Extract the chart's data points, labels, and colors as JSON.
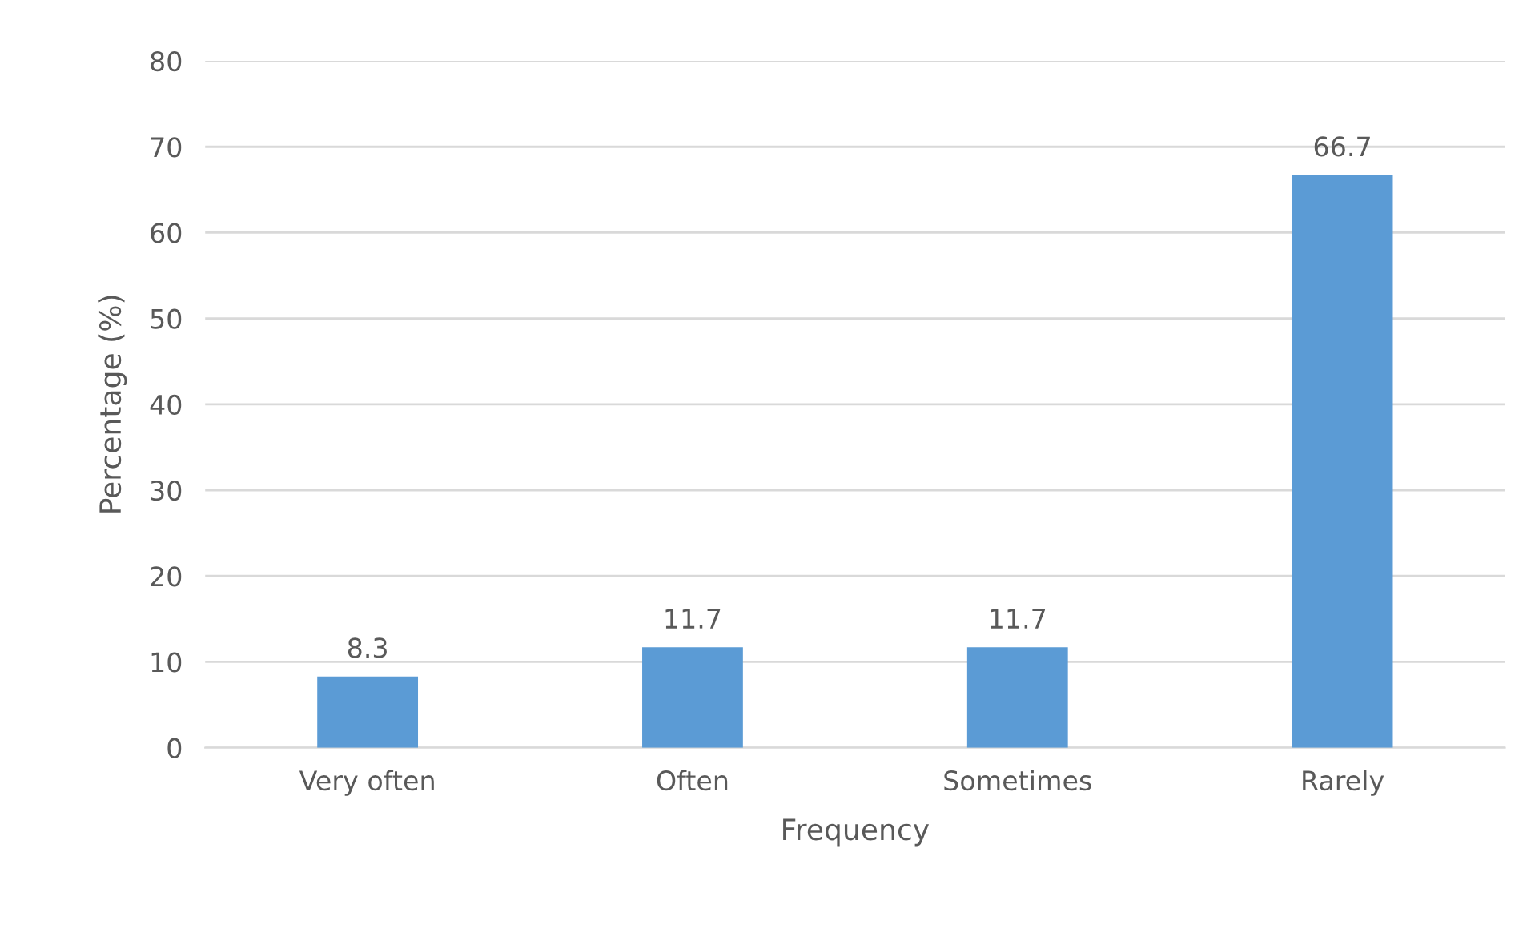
{
  "chart_data": {
    "type": "bar",
    "xlabel": "Frequency",
    "ylabel": "Percentage (%)",
    "categories": [
      "Very often",
      "Often",
      "Sometimes",
      "Rarely"
    ],
    "values": [
      8.3,
      11.7,
      11.7,
      66.7
    ],
    "color": "#5b9bd5",
    "ylim": [
      0,
      80
    ],
    "yticks": [
      0,
      10,
      20,
      30,
      40,
      50,
      60,
      70,
      80
    ],
    "grid": "y",
    "data_labels": true,
    "legend": false
  }
}
